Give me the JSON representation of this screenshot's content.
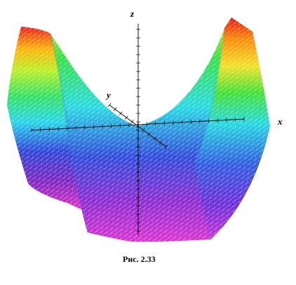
{
  "figure": {
    "axis_labels": {
      "x": "x",
      "y": "y",
      "z": "z"
    },
    "caption": "Рис. 2.33"
  },
  "colors": {
    "axis": "#000000",
    "mesh_line": "#ffffff",
    "surface_gradient": [
      "#d42a8c",
      "#7a1ea8",
      "#1f2ed0",
      "#1fd2e6",
      "#23dc2f",
      "#f0f020",
      "#ff8a00",
      "#e81010"
    ]
  }
}
